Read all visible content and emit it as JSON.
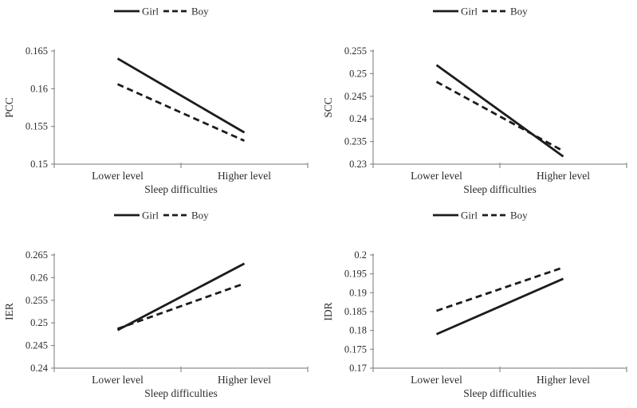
{
  "figure": {
    "background": "#ffffff",
    "description": "2x2 grid of interaction line plots of sleep difficulties by gender"
  },
  "colors": {
    "series_line": "#1c1c1c",
    "axis_line": "#8f8f8f",
    "text": "#2b2b2b"
  },
  "legend": {
    "entries": [
      {
        "label": "Girl",
        "style": "solid"
      },
      {
        "label": "Boy",
        "style": "dashed"
      }
    ]
  },
  "chart_data": [
    {
      "type": "line",
      "title": "",
      "ylabel": "PCC",
      "xlabel": "Sleep difficulties",
      "categories": [
        "Lower level",
        "Higher level"
      ],
      "ylim": [
        0.15,
        0.165
      ],
      "yticks": [
        0.15,
        0.155,
        0.16,
        0.165
      ],
      "ytick_labels": [
        "0.15",
        "0.155",
        "0.16",
        "0.165"
      ],
      "grid": false,
      "legend_position": "top",
      "series": [
        {
          "name": "Girl",
          "style": "solid",
          "values": [
            0.164,
            0.1542
          ]
        },
        {
          "name": "Boy",
          "style": "dashed",
          "values": [
            0.1606,
            0.1531
          ]
        }
      ]
    },
    {
      "type": "line",
      "title": "",
      "ylabel": "SCC",
      "xlabel": "Sleep difficulties",
      "categories": [
        "Lower level",
        "Higher level"
      ],
      "ylim": [
        0.23,
        0.255
      ],
      "yticks": [
        0.23,
        0.235,
        0.24,
        0.245,
        0.25,
        0.255
      ],
      "ytick_labels": [
        "0.23",
        "0.235",
        "0.24",
        "0.245",
        "0.25",
        "0.255"
      ],
      "grid": false,
      "legend_position": "top",
      "series": [
        {
          "name": "Girl",
          "style": "solid",
          "values": [
            0.2519,
            0.2317
          ]
        },
        {
          "name": "Boy",
          "style": "dashed",
          "values": [
            0.2482,
            0.2329
          ]
        }
      ]
    },
    {
      "type": "line",
      "title": "",
      "ylabel": "IER",
      "xlabel": "Sleep difficulties",
      "categories": [
        "Lower level",
        "Higher level"
      ],
      "ylim": [
        0.24,
        0.265
      ],
      "yticks": [
        0.24,
        0.245,
        0.25,
        0.255,
        0.26,
        0.265
      ],
      "ytick_labels": [
        "0.24",
        "0.245",
        "0.25",
        "0.255",
        "0.26",
        "0.265"
      ],
      "grid": false,
      "legend_position": "top",
      "series": [
        {
          "name": "Girl",
          "style": "solid",
          "values": [
            0.2484,
            0.2631
          ]
        },
        {
          "name": "Boy",
          "style": "dashed",
          "values": [
            0.2487,
            0.2587
          ]
        }
      ]
    },
    {
      "type": "line",
      "title": "",
      "ylabel": "IDR",
      "xlabel": "Sleep difficulties",
      "categories": [
        "Lower level",
        "Higher level"
      ],
      "ylim": [
        0.17,
        0.2
      ],
      "yticks": [
        0.17,
        0.175,
        0.18,
        0.185,
        0.19,
        0.195,
        0.2
      ],
      "ytick_labels": [
        "0.17",
        "0.175",
        "0.18",
        "0.185",
        "0.19",
        "0.195",
        "0.2"
      ],
      "grid": false,
      "legend_position": "top",
      "series": [
        {
          "name": "Girl",
          "style": "solid",
          "values": [
            0.179,
            0.1937
          ]
        },
        {
          "name": "Boy",
          "style": "dashed",
          "values": [
            0.1852,
            0.1967
          ]
        }
      ]
    }
  ]
}
